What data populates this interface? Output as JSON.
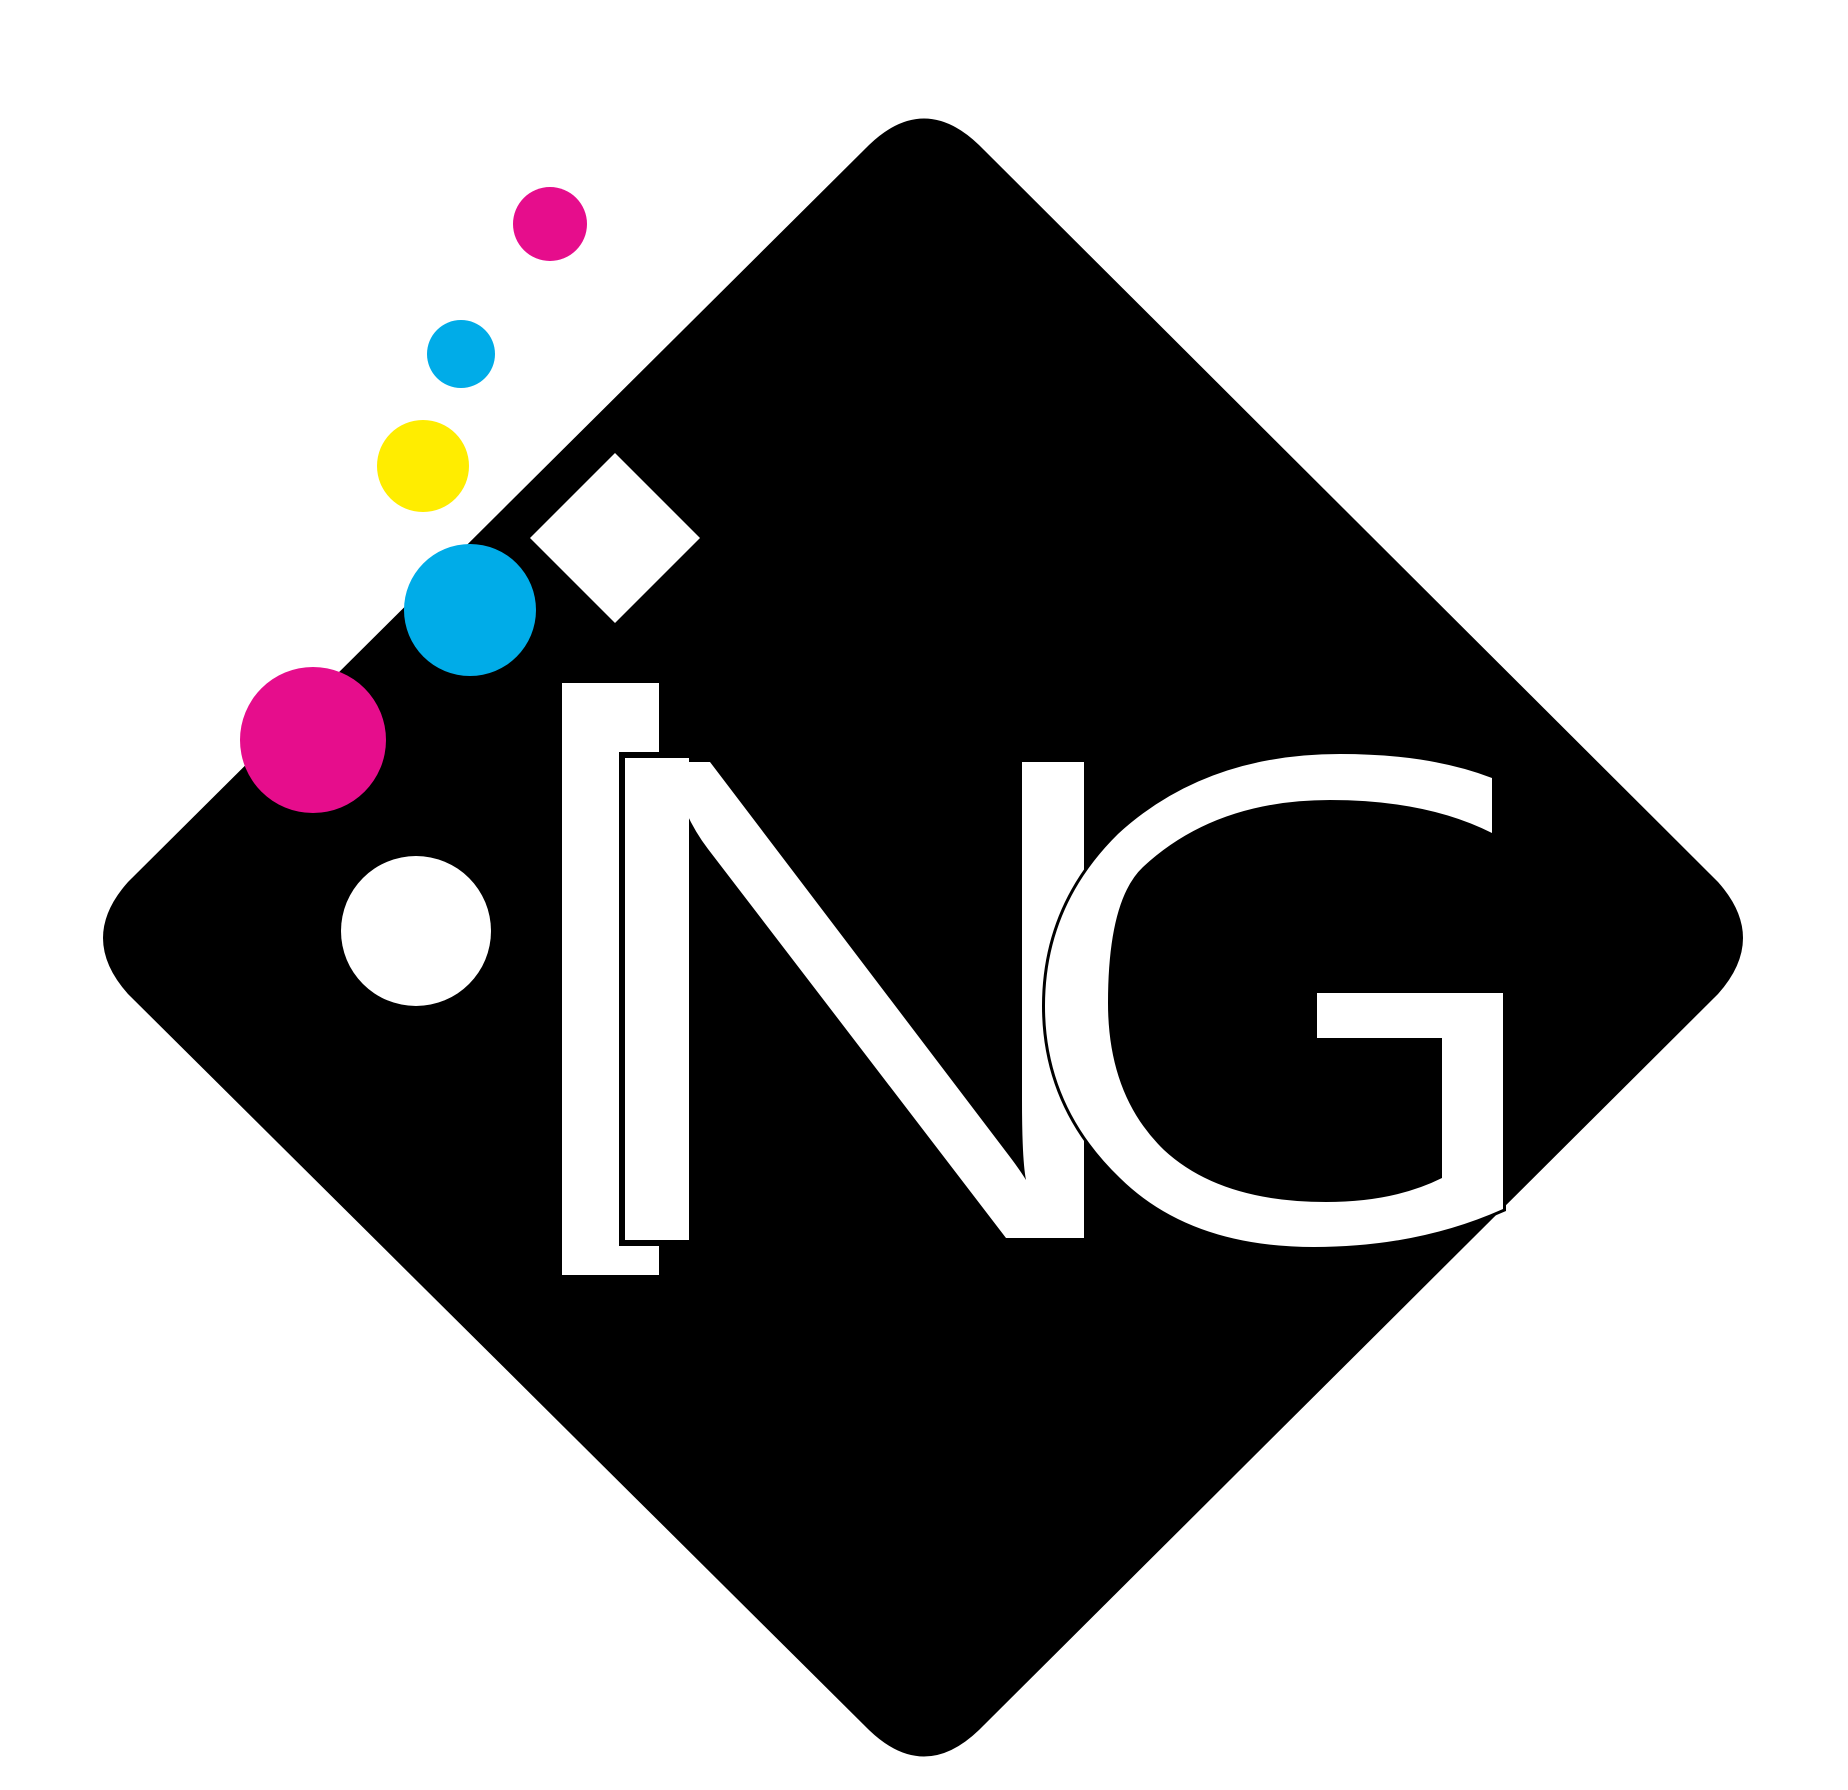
{
  "logo": {
    "lettering": "ING",
    "colors": {
      "background": "#ffffff",
      "diamond": "#000000",
      "letters": "#ffffff",
      "magenta": "#e60d8c",
      "cyan": "#00ace8",
      "yellow": "#ffed00",
      "white_dot": "#ffffff"
    },
    "elements": [
      "black-rounded-diamond",
      "white-small-diamond",
      "magenta-dot",
      "cyan-dot",
      "yellow-dot",
      "white-dot",
      "letter-i",
      "letter-n",
      "letter-g"
    ]
  }
}
